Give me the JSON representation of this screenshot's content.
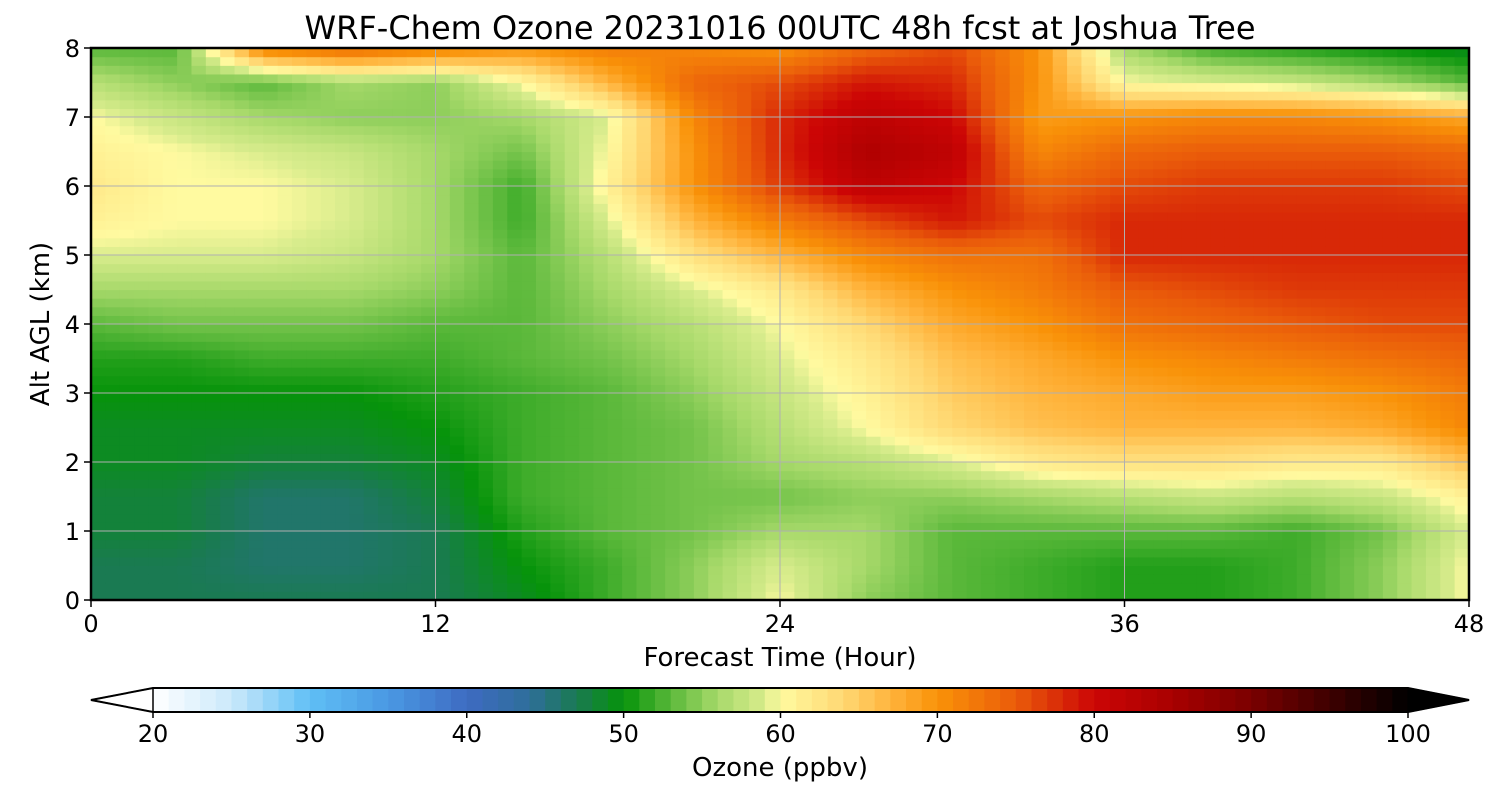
{
  "figure": {
    "title": "WRF-Chem Ozone  20231016 00UTC 48h fcst at Joshua Tree"
  },
  "chart_data": {
    "type": "heatmap",
    "title": "WRF-Chem Ozone  20231016 00UTC 48h fcst at Joshua Tree",
    "xlabel": "Forecast Time (Hour)",
    "ylabel": "Alt AGL (km)",
    "x_ticks": [
      0,
      12,
      24,
      36,
      48
    ],
    "y_ticks": [
      0,
      1,
      2,
      3,
      4,
      5,
      6,
      7,
      8
    ],
    "xlim": [
      0,
      48
    ],
    "ylim": [
      0,
      8
    ],
    "grid": true,
    "x_hours": [
      0,
      3,
      6,
      9,
      12,
      15,
      18,
      21,
      24,
      27,
      30,
      33,
      36,
      39,
      42,
      45,
      48
    ],
    "y_km": [
      0,
      0.5,
      1,
      1.5,
      2,
      2.5,
      3,
      3.5,
      4,
      4.5,
      5,
      5.5,
      6,
      6.5,
      7,
      7.5,
      8
    ],
    "ozone_ppbv": [
      [
        47,
        47,
        47,
        47,
        47,
        49,
        52,
        55,
        60,
        55,
        53,
        52,
        51,
        51,
        52,
        55,
        60
      ],
      [
        47,
        47,
        46,
        46,
        47,
        50,
        52,
        55,
        59,
        56,
        53,
        52,
        51,
        51,
        52,
        55,
        60
      ],
      [
        48,
        48,
        46,
        46,
        47,
        51,
        53,
        54,
        56,
        56,
        53,
        53,
        53,
        53,
        52,
        54,
        59
      ],
      [
        48,
        48,
        46,
        46,
        48,
        52,
        53,
        54,
        54,
        55,
        55,
        56,
        57,
        58,
        57,
        58,
        61
      ],
      [
        49,
        49,
        48,
        48,
        49,
        52,
        53,
        54,
        56,
        57,
        59,
        62,
        63,
        63,
        62,
        62,
        66
      ],
      [
        49,
        49,
        49,
        49,
        50,
        52,
        53,
        54,
        57,
        60,
        64,
        66,
        67,
        67,
        67,
        68,
        71
      ],
      [
        50,
        50,
        50,
        50,
        51,
        52,
        53,
        55,
        58,
        61,
        65,
        67,
        68,
        69,
        69,
        70,
        72
      ],
      [
        51,
        51,
        52,
        52,
        52,
        53,
        54,
        56,
        59,
        62,
        66,
        68,
        70,
        71,
        72,
        73,
        74
      ],
      [
        53,
        54,
        54,
        54,
        53,
        53,
        55,
        57,
        60,
        64,
        68,
        70,
        73,
        74,
        75,
        76,
        76
      ],
      [
        56,
        56,
        56,
        56,
        55,
        53,
        56,
        59,
        62,
        67,
        70,
        72,
        75,
        76,
        77,
        77,
        77
      ],
      [
        59,
        59,
        59,
        58,
        56,
        53,
        57,
        63,
        67,
        71,
        73,
        73,
        78,
        78,
        78,
        78,
        78
      ],
      [
        61,
        60,
        60,
        59,
        56,
        52,
        59,
        67,
        72,
        76,
        79,
        76,
        78,
        78,
        78,
        78,
        78
      ],
      [
        62,
        60,
        60,
        59,
        56,
        52,
        61,
        70,
        77,
        82,
        80,
        74,
        76,
        77,
        77,
        77,
        76
      ],
      [
        61,
        60,
        59,
        58,
        56,
        54,
        60,
        70,
        78,
        84,
        82,
        71,
        74,
        75,
        75,
        75,
        74
      ],
      [
        60,
        58,
        56,
        55,
        55,
        56,
        59,
        71,
        78,
        82,
        80,
        69,
        70,
        71,
        71,
        70,
        68
      ],
      [
        57,
        55,
        53,
        56,
        55,
        60,
        67,
        74,
        76,
        79,
        78,
        70,
        60,
        59,
        58,
        56,
        53
      ],
      [
        53,
        53,
        72,
        74,
        72,
        70,
        72,
        71,
        70,
        74,
        76,
        70,
        56,
        52,
        51,
        50,
        49
      ]
    ],
    "colorbar": {
      "label": "Ozone  (ppbv)",
      "min": 20,
      "max": 100,
      "ticks": [
        20,
        30,
        40,
        50,
        60,
        70,
        80,
        90,
        100
      ],
      "extend": "both",
      "stops": [
        {
          "v": 20,
          "c": "#ffffff"
        },
        {
          "v": 25,
          "c": "#cbe9fa"
        },
        {
          "v": 30,
          "c": "#5fbff5"
        },
        {
          "v": 35,
          "c": "#4a98e3"
        },
        {
          "v": 40,
          "c": "#3e6bc2"
        },
        {
          "v": 44,
          "c": "#2e6e9a"
        },
        {
          "v": 47,
          "c": "#1a7a52"
        },
        {
          "v": 50,
          "c": "#06930a"
        },
        {
          "v": 53,
          "c": "#5ab83a"
        },
        {
          "v": 56,
          "c": "#a7d96a"
        },
        {
          "v": 59,
          "c": "#d8ec8c"
        },
        {
          "v": 60,
          "c": "#fffaa0"
        },
        {
          "v": 64,
          "c": "#ffd873"
        },
        {
          "v": 67,
          "c": "#ffb43d"
        },
        {
          "v": 70,
          "c": "#f99208"
        },
        {
          "v": 75,
          "c": "#ea5c0a"
        },
        {
          "v": 80,
          "c": "#cc0505"
        },
        {
          "v": 85,
          "c": "#a80000"
        },
        {
          "v": 90,
          "c": "#7a0000"
        },
        {
          "v": 95,
          "c": "#3e0000"
        },
        {
          "v": 100,
          "c": "#000000"
        }
      ]
    }
  }
}
